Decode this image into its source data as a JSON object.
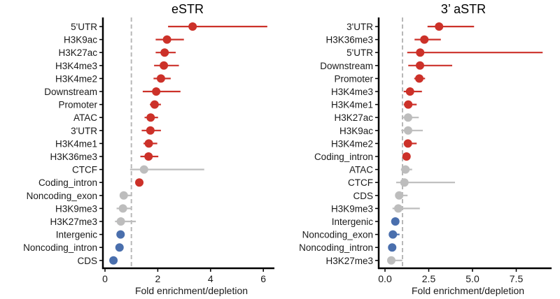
{
  "chart_data": [
    {
      "type": "scatter",
      "subtype": "dot-and-whisker",
      "title": "eSTR",
      "xlabel": "Fold enrichment/depletion",
      "ylabel": "",
      "xlim": [
        0,
        6.4
      ],
      "xticks": [
        0,
        2,
        4,
        6
      ],
      "xtick_labels": [
        "0",
        "2",
        "4",
        "6"
      ],
      "reference_line": 1,
      "grid": false,
      "categories": [
        "5'UTR",
        "H3K9ac",
        "H3K27ac",
        "H3K4me3",
        "H3K4me2",
        "Downstream",
        "Promoter",
        "ATAC",
        "3'UTR",
        "H3K4me1",
        "H3K36me3",
        "CTCF",
        "Coding_intron",
        "Noncoding_exon",
        "H3K9me3",
        "H3K27me3",
        "Intergenic",
        "Noncoding_intron",
        "CDS"
      ],
      "values": [
        3.32,
        2.35,
        2.26,
        2.23,
        2.12,
        1.94,
        1.88,
        1.73,
        1.72,
        1.66,
        1.65,
        1.48,
        1.3,
        0.71,
        0.68,
        0.6,
        0.59,
        0.55,
        0.32
      ],
      "lower": [
        2.39,
        1.92,
        1.92,
        1.86,
        1.84,
        1.43,
        1.7,
        1.5,
        1.39,
        1.46,
        1.34,
        0.95,
        1.22,
        0.66,
        0.44,
        0.38,
        0.55,
        0.52,
        0.29
      ],
      "upper": [
        6.15,
        2.99,
        2.68,
        2.8,
        2.49,
        2.86,
        2.12,
        2.01,
        2.12,
        1.98,
        2.02,
        3.76,
        1.38,
        1.0,
        1.02,
        1.17,
        0.63,
        0.58,
        0.35
      ],
      "status": [
        "enriched",
        "enriched",
        "enriched",
        "enriched",
        "enriched",
        "enriched",
        "enriched",
        "enriched",
        "enriched",
        "enriched",
        "enriched",
        "ns",
        "enriched",
        "ns",
        "ns",
        "ns",
        "depleted",
        "depleted",
        "depleted"
      ]
    },
    {
      "type": "scatter",
      "subtype": "dot-and-whisker",
      "title": "3’ aSTR",
      "xlabel": "Fold enrichment/depletion",
      "ylabel": "",
      "xlim": [
        0,
        9.5
      ],
      "xticks": [
        0,
        2.5,
        5,
        7.5
      ],
      "xtick_labels": [
        "0.0",
        "2.5",
        "5.0",
        "7.5"
      ],
      "reference_line": 1,
      "grid": false,
      "categories": [
        "3'UTR",
        "H3K36me3",
        "5'UTR",
        "Downstream",
        "Promoter",
        "H3K4me3",
        "H3K4me1",
        "H3K27ac",
        "H3K9ac",
        "H3K4me2",
        "Coding_intron",
        "ATAC",
        "CTCF",
        "CDS",
        "H3K9me3",
        "Intergenic",
        "Noncoding_exon",
        "Noncoding_intron",
        "H3K27me3"
      ],
      "values": [
        3.09,
        2.25,
        2.01,
        2.0,
        1.96,
        1.43,
        1.33,
        1.32,
        1.32,
        1.31,
        1.23,
        1.17,
        1.11,
        0.81,
        0.76,
        0.59,
        0.45,
        0.41,
        0.36
      ],
      "lower": [
        2.43,
        1.69,
        1.27,
        1.33,
        1.67,
        1.07,
        1.07,
        1.0,
        0.93,
        1.07,
        1.15,
        0.91,
        0.64,
        0.75,
        0.43,
        0.55,
        0.42,
        0.38,
        0.3
      ],
      "upper": [
        5.09,
        3.19,
        9.01,
        3.84,
        2.29,
        2.11,
        1.81,
        1.93,
        2.16,
        1.81,
        1.31,
        1.55,
        4.0,
        1.29,
        1.99,
        0.63,
        0.83,
        0.44,
        0.99
      ],
      "status": [
        "enriched",
        "enriched",
        "enriched",
        "enriched",
        "enriched",
        "enriched",
        "enriched",
        "ns",
        "ns",
        "enriched",
        "enriched",
        "ns",
        "ns",
        "ns",
        "ns",
        "depleted",
        "depleted",
        "depleted",
        "ns"
      ]
    }
  ],
  "colors": {
    "enriched": "#cc3129",
    "ns": "#bdbdbd",
    "depleted": "#4a6fad",
    "reference_line": "#b8b8b8",
    "axis": "#000000"
  }
}
